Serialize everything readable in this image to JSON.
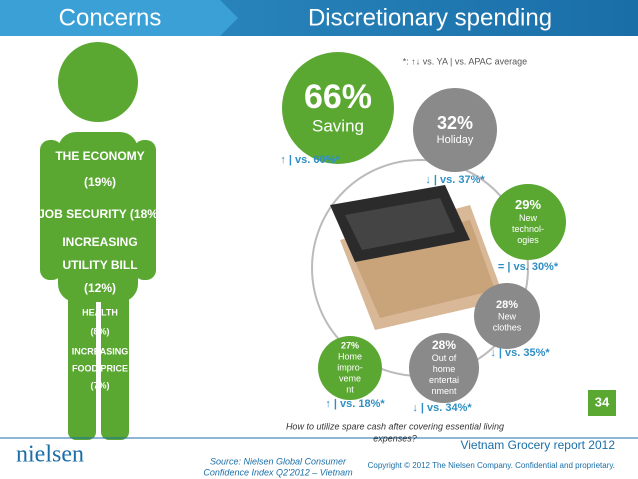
{
  "header": {
    "left": "Concerns",
    "right": "Discretionary spending"
  },
  "note": "*: ↑↓ vs. YA | vs. APAC average",
  "concerns": [
    {
      "lines": [
        "THE ECONOMY",
        "(19%)"
      ]
    },
    {
      "lines": [
        "JOB SECURITY (18%)"
      ]
    },
    {
      "lines": [
        "INCREASING",
        "UTILITY BILL",
        "(12%)"
      ]
    },
    {
      "lines": [
        "HEALTH",
        "(8%)"
      ]
    },
    {
      "lines": [
        "INCREASING",
        "FOOD PRICE",
        "(7%)"
      ]
    }
  ],
  "bubbles": [
    {
      "value": "66%",
      "label": [
        "Saving"
      ],
      "compare": "↑ | vs. 60%*"
    },
    {
      "value": "32%",
      "label": [
        "Holiday"
      ],
      "compare": "↓ | vs. 37%*"
    },
    {
      "value": "29%",
      "label": [
        "New",
        "technol-",
        "ogies"
      ],
      "compare": "= | vs. 30%*"
    },
    {
      "value": "28%",
      "label": [
        "New",
        "clothes"
      ],
      "compare": "↓ | vs. 35%*"
    },
    {
      "value": "28%",
      "label": [
        "Out of",
        "home",
        "entertai",
        "nment"
      ],
      "compare": "↓ | vs. 34%*"
    },
    {
      "value": "27%",
      "label": [
        "Home",
        "impro-",
        "veme",
        "nt"
      ],
      "compare": "↑ | vs. 18%*"
    }
  ],
  "caption": [
    "How to utilize spare cash after covering essential living",
    "expenses?"
  ],
  "page_number": "34",
  "footer": {
    "logo": "nielsen",
    "report": "Vietnam Grocery report 2012",
    "copyright": "Copyright © 2012 The Nielsen Company. Confidential and proprietary.",
    "source": [
      "Source: Nielsen Global Consumer",
      "Confidence Index  Q2'2012 – Vietnam"
    ]
  }
}
